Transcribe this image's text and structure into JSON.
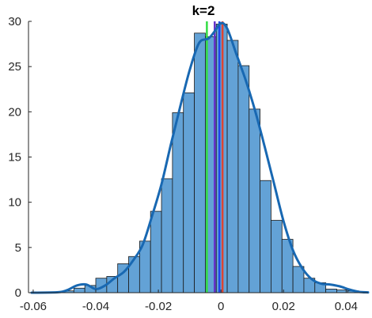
{
  "chart_data": {
    "type": "bar",
    "title": "k=2",
    "xlabel": "",
    "ylabel": "",
    "xlim": [
      -0.0615,
      0.047
    ],
    "ylim": [
      0,
      30
    ],
    "xticks": [
      -0.06,
      -0.04,
      -0.02,
      0,
      0.02,
      0.04
    ],
    "xtick_labels": [
      "-0.06",
      "-0.04",
      "-0.02",
      "0",
      "0.02",
      "0.04"
    ],
    "yticks": [
      0,
      5,
      10,
      15,
      20,
      25,
      30
    ],
    "ytick_labels": [
      "0",
      "5",
      "10",
      "15",
      "20",
      "25",
      "30"
    ],
    "grid": false,
    "bin_width": 0.0035,
    "bin_edges_start": -0.0505,
    "values": [
      0.2,
      0.5,
      0.8,
      1.6,
      1.8,
      3.2,
      4.0,
      5.7,
      9.0,
      12.6,
      19.9,
      22.1,
      28.7,
      28.3,
      29.7,
      27.9,
      25.1,
      20.3,
      12.4,
      8.0,
      5.9,
      2.9,
      1.6,
      1.1,
      0.4,
      0.3,
      0.2
    ],
    "density_curve": {
      "x": [
        -0.0605,
        -0.052,
        -0.049,
        -0.046,
        -0.043,
        -0.04,
        -0.037,
        -0.034,
        -0.031,
        -0.028,
        -0.025,
        -0.022,
        -0.019,
        -0.016,
        -0.013,
        -0.01,
        -0.007,
        -0.004,
        -0.002,
        0.0,
        0.002,
        0.005,
        0.008,
        0.011,
        0.014,
        0.017,
        0.02,
        0.023,
        0.026,
        0.029,
        0.032,
        0.035,
        0.038,
        0.041,
        0.044,
        0.047
      ],
      "y": [
        0.0,
        0.05,
        0.3,
        0.8,
        0.9,
        0.4,
        0.8,
        1.6,
        2.3,
        3.6,
        5.3,
        8.5,
        12.0,
        16.4,
        20.6,
        24.6,
        27.6,
        28.1,
        28.9,
        29.8,
        29.2,
        26.3,
        23.4,
        20.0,
        16.1,
        12.0,
        7.9,
        4.7,
        2.7,
        1.5,
        1.0,
        0.9,
        0.7,
        0.35,
        0.1,
        0.03
      ]
    },
    "vertical_lines": [
      {
        "x": -0.0045,
        "color": "#33dd44"
      },
      {
        "x": -0.002,
        "color": "#6633cc"
      },
      {
        "x": -0.0005,
        "color": "#2244ee"
      },
      {
        "x": 0.0005,
        "color": "#dd4433"
      }
    ],
    "bar_color": "#63a2d6",
    "bar_edge_color": "#1a1a1a",
    "curve_color": "#1868b2"
  }
}
